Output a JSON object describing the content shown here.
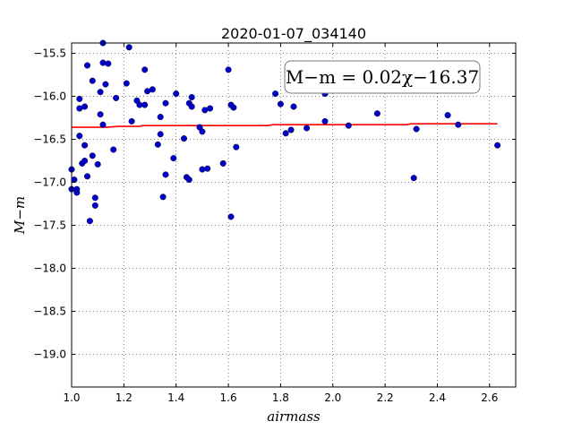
{
  "chart_data": {
    "type": "scatter",
    "title": "2020-01-07_034140",
    "xlabel": "airmass",
    "ylabel": "M−m",
    "xlim": [
      1.0,
      2.7
    ],
    "ylim": [
      -19.38,
      -15.38
    ],
    "xticks": [
      1.0,
      1.2,
      1.4,
      1.6,
      1.8,
      2.0,
      2.2,
      2.4,
      2.6
    ],
    "xtick_labels": [
      "1.0",
      "1.2",
      "1.4",
      "1.6",
      "1.8",
      "2.0",
      "2.2",
      "2.4",
      "2.6"
    ],
    "yticks": [
      -19.0,
      -18.5,
      -18.0,
      -17.5,
      -17.0,
      -16.5,
      -16.0,
      -15.5
    ],
    "ytick_labels": [
      "−19.0",
      "−18.5",
      "−18.0",
      "−17.5",
      "−17.0",
      "−16.5",
      "−16.0",
      "−15.5"
    ],
    "grid": true,
    "annotation": "M−m = 0.02χ−16.37",
    "points_color": "#0000cc",
    "fit_color": "#ff0000",
    "points": [
      [
        1.0,
        -16.85
      ],
      [
        1.0,
        -17.08
      ],
      [
        1.01,
        -16.97
      ],
      [
        1.02,
        -17.08
      ],
      [
        1.02,
        -17.12
      ],
      [
        1.03,
        -16.46
      ],
      [
        1.03,
        -16.03
      ],
      [
        1.03,
        -16.14
      ],
      [
        1.04,
        -16.78
      ],
      [
        1.05,
        -16.75
      ],
      [
        1.05,
        -16.12
      ],
      [
        1.05,
        -16.57
      ],
      [
        1.06,
        -16.93
      ],
      [
        1.06,
        -15.64
      ],
      [
        1.07,
        -17.45
      ],
      [
        1.08,
        -16.69
      ],
      [
        1.08,
        -15.82
      ],
      [
        1.09,
        -17.27
      ],
      [
        1.09,
        -17.18
      ],
      [
        1.1,
        -16.79
      ],
      [
        1.11,
        -15.95
      ],
      [
        1.11,
        -16.21
      ],
      [
        1.12,
        -16.33
      ],
      [
        1.12,
        -15.38
      ],
      [
        1.12,
        -15.61
      ],
      [
        1.13,
        -15.86
      ],
      [
        1.14,
        -15.62
      ],
      [
        1.16,
        -16.62
      ],
      [
        1.17,
        -16.02
      ],
      [
        1.21,
        -15.85
      ],
      [
        1.22,
        -15.43
      ],
      [
        1.23,
        -16.29
      ],
      [
        1.25,
        -16.05
      ],
      [
        1.26,
        -16.1
      ],
      [
        1.28,
        -16.1
      ],
      [
        1.28,
        -15.69
      ],
      [
        1.29,
        -15.94
      ],
      [
        1.31,
        -15.92
      ],
      [
        1.33,
        -16.56
      ],
      [
        1.34,
        -16.44
      ],
      [
        1.34,
        -16.24
      ],
      [
        1.35,
        -17.17
      ],
      [
        1.36,
        -16.08
      ],
      [
        1.36,
        -16.91
      ],
      [
        1.39,
        -16.72
      ],
      [
        1.4,
        -15.97
      ],
      [
        1.43,
        -16.49
      ],
      [
        1.44,
        -16.94
      ],
      [
        1.45,
        -16.97
      ],
      [
        1.45,
        -16.08
      ],
      [
        1.46,
        -16.01
      ],
      [
        1.46,
        -16.12
      ],
      [
        1.49,
        -16.36
      ],
      [
        1.5,
        -16.85
      ],
      [
        1.5,
        -16.41
      ],
      [
        1.51,
        -16.16
      ],
      [
        1.52,
        -16.84
      ],
      [
        1.53,
        -16.14
      ],
      [
        1.58,
        -16.78
      ],
      [
        1.6,
        -15.69
      ],
      [
        1.61,
        -17.4
      ],
      [
        1.61,
        -16.1
      ],
      [
        1.62,
        -16.13
      ],
      [
        1.63,
        -16.59
      ],
      [
        1.78,
        -15.97
      ],
      [
        1.8,
        -16.09
      ],
      [
        1.82,
        -16.43
      ],
      [
        1.84,
        -16.39
      ],
      [
        1.85,
        -16.12
      ],
      [
        1.9,
        -16.37
      ],
      [
        1.97,
        -15.97
      ],
      [
        1.97,
        -16.29
      ],
      [
        2.06,
        -16.34
      ],
      [
        2.17,
        -16.2
      ],
      [
        2.31,
        -16.95
      ],
      [
        2.32,
        -16.38
      ],
      [
        2.44,
        -16.22
      ],
      [
        2.48,
        -16.33
      ],
      [
        2.63,
        -16.57
      ]
    ],
    "fit_line": [
      [
        1.0,
        -16.36
      ],
      [
        1.13,
        -16.36
      ],
      [
        1.18,
        -16.35
      ],
      [
        1.26,
        -16.35
      ],
      [
        1.27,
        -16.34
      ],
      [
        1.4,
        -16.34
      ],
      [
        1.75,
        -16.34
      ],
      [
        1.77,
        -16.33
      ],
      [
        1.98,
        -16.33
      ],
      [
        2.28,
        -16.33
      ],
      [
        2.3,
        -16.32
      ],
      [
        2.63,
        -16.32
      ]
    ]
  }
}
